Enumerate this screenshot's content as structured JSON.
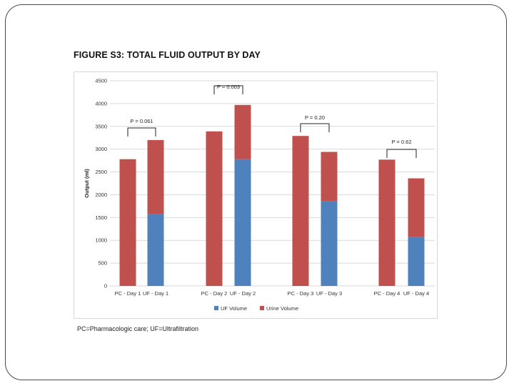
{
  "figure": {
    "title": "FIGURE S3: TOTAL FLUID OUTPUT BY DAY",
    "footnote": "PC=Pharmacologic care; UF=Ultrafiltration"
  },
  "chart_data": {
    "type": "bar",
    "stacked": true,
    "title": "FIGURE S3: TOTAL FLUID OUTPUT BY DAY",
    "xlabel": "",
    "ylabel": "Output (ml)",
    "ylim": [
      0,
      4500
    ],
    "yticks": [
      0,
      500,
      1000,
      1500,
      2000,
      2500,
      3000,
      3500,
      4000,
      4500
    ],
    "grid": true,
    "legend_position": "bottom",
    "categories": [
      "PC - Day 1",
      "UF - Day 1",
      "PC - Day 2",
      "UF - Day 2",
      "PC - Day 3",
      "UF - Day 3",
      "PC - Day 4",
      "UF - Day 4"
    ],
    "series": [
      {
        "name": "UF Volume",
        "color": "#4f81bd",
        "values": [
          0,
          1570,
          0,
          2780,
          0,
          1860,
          0,
          1070
        ]
      },
      {
        "name": "Urine Volume",
        "color": "#c0504d",
        "values": [
          2780,
          1630,
          3390,
          1190,
          3290,
          1080,
          2770,
          1290
        ]
      }
    ],
    "annotations": [
      {
        "label": "P = 0.061",
        "day": 1
      },
      {
        "label": "P = 0.003",
        "day": 2
      },
      {
        "label": "P = 0.20",
        "day": 3
      },
      {
        "label": "P = 0.62",
        "day": 4
      }
    ]
  }
}
